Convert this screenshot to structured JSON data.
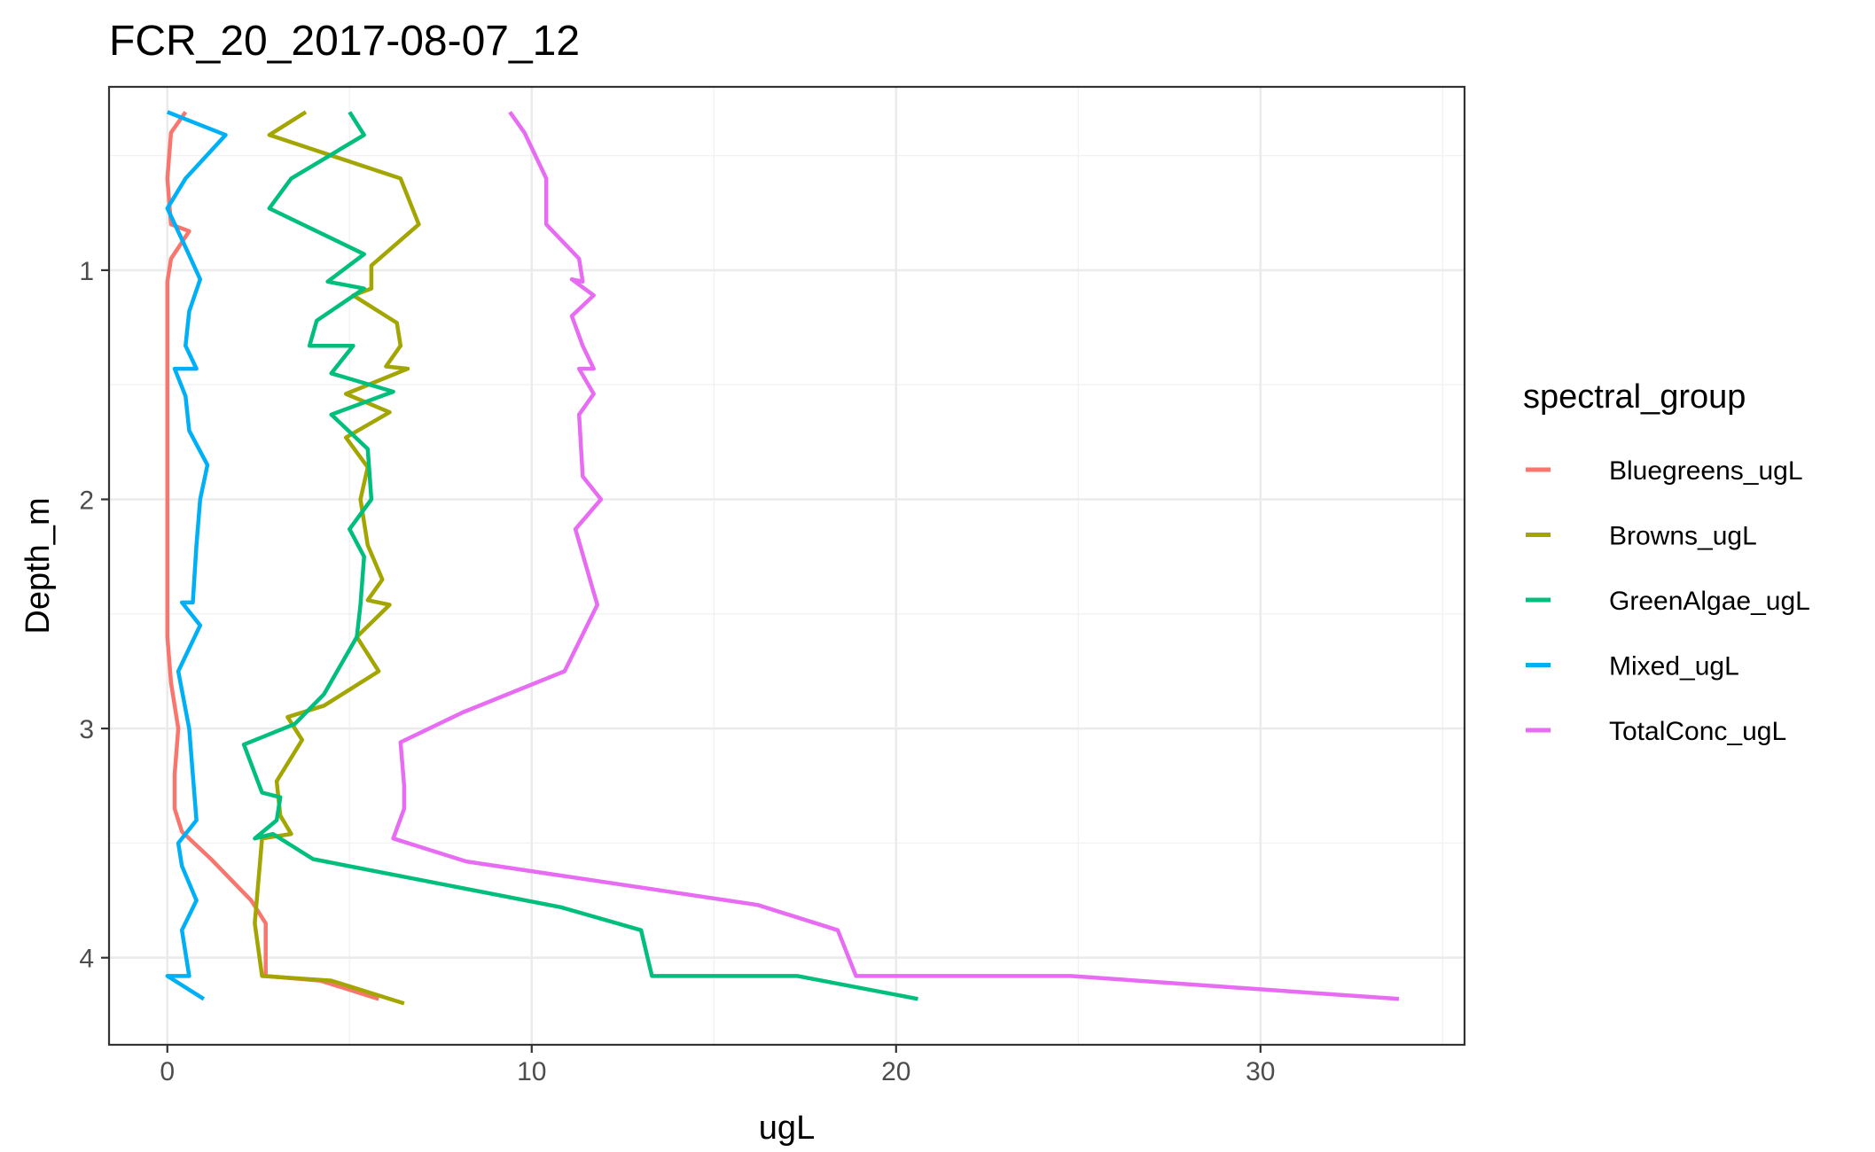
{
  "chart_data": {
    "type": "line",
    "title": "FCR_20_2017-08-07_12",
    "xlabel": "ugL",
    "ylabel": "Depth_m",
    "xlim": [
      -1.6,
      35.6
    ],
    "ylim": [
      4.38,
      0.2
    ],
    "y_reversed": true,
    "x_ticks": [
      0,
      10,
      20,
      30
    ],
    "y_ticks": [
      1,
      2,
      3,
      4
    ],
    "grid": true,
    "legend": {
      "title": "spectral_group",
      "position": "right"
    },
    "series": [
      {
        "name": "Bluegreens_ugL",
        "color": "#F8766D",
        "points": [
          [
            0.5,
            0.31
          ],
          [
            0.1,
            0.4
          ],
          [
            0.0,
            0.6
          ],
          [
            0.1,
            0.8
          ],
          [
            0.6,
            0.83
          ],
          [
            0.1,
            0.95
          ],
          [
            0.0,
            1.05
          ],
          [
            0.0,
            1.2
          ],
          [
            0.0,
            1.4
          ],
          [
            0.0,
            1.6
          ],
          [
            0.0,
            1.8
          ],
          [
            0.0,
            2.0
          ],
          [
            0.0,
            2.2
          ],
          [
            0.0,
            2.4
          ],
          [
            0.0,
            2.6
          ],
          [
            0.1,
            2.8
          ],
          [
            0.3,
            3.0
          ],
          [
            0.2,
            3.2
          ],
          [
            0.2,
            3.35
          ],
          [
            0.4,
            3.45
          ],
          [
            1.2,
            3.57
          ],
          [
            2.3,
            3.75
          ],
          [
            2.7,
            3.85
          ],
          [
            2.7,
            4.08
          ],
          [
            4.2,
            4.1
          ],
          [
            5.8,
            4.18
          ]
        ]
      },
      {
        "name": "Browns_ugL",
        "color": "#A3A500",
        "points": [
          [
            3.8,
            0.31
          ],
          [
            2.8,
            0.41
          ],
          [
            6.4,
            0.6
          ],
          [
            6.9,
            0.8
          ],
          [
            5.6,
            0.98
          ],
          [
            5.6,
            1.08
          ],
          [
            5.1,
            1.11
          ],
          [
            6.3,
            1.23
          ],
          [
            6.4,
            1.33
          ],
          [
            6.0,
            1.42
          ],
          [
            6.6,
            1.43
          ],
          [
            4.9,
            1.54
          ],
          [
            6.1,
            1.62
          ],
          [
            4.9,
            1.73
          ],
          [
            5.5,
            1.86
          ],
          [
            5.3,
            2.0
          ],
          [
            5.5,
            2.2
          ],
          [
            5.9,
            2.35
          ],
          [
            5.5,
            2.44
          ],
          [
            6.1,
            2.46
          ],
          [
            5.2,
            2.6
          ],
          [
            5.8,
            2.75
          ],
          [
            4.3,
            2.9
          ],
          [
            3.3,
            2.95
          ],
          [
            3.7,
            3.05
          ],
          [
            3.0,
            3.23
          ],
          [
            3.1,
            3.38
          ],
          [
            3.4,
            3.46
          ],
          [
            2.6,
            3.48
          ],
          [
            2.4,
            3.85
          ],
          [
            2.6,
            4.08
          ],
          [
            4.5,
            4.1
          ],
          [
            6.5,
            4.2
          ]
        ]
      },
      {
        "name": "GreenAlgae_ugL",
        "color": "#00BF7D",
        "points": [
          [
            5.0,
            0.31
          ],
          [
            5.4,
            0.41
          ],
          [
            3.4,
            0.6
          ],
          [
            2.8,
            0.73
          ],
          [
            5.4,
            0.93
          ],
          [
            4.4,
            1.05
          ],
          [
            5.4,
            1.08
          ],
          [
            4.1,
            1.22
          ],
          [
            3.9,
            1.33
          ],
          [
            5.1,
            1.33
          ],
          [
            4.5,
            1.45
          ],
          [
            6.2,
            1.53
          ],
          [
            4.5,
            1.63
          ],
          [
            5.5,
            1.78
          ],
          [
            5.6,
            2.0
          ],
          [
            5.0,
            2.13
          ],
          [
            5.4,
            2.25
          ],
          [
            5.3,
            2.46
          ],
          [
            5.2,
            2.6
          ],
          [
            4.3,
            2.85
          ],
          [
            3.5,
            2.98
          ],
          [
            2.1,
            3.07
          ],
          [
            2.6,
            3.28
          ],
          [
            3.1,
            3.3
          ],
          [
            3.0,
            3.4
          ],
          [
            2.4,
            3.48
          ],
          [
            2.9,
            3.46
          ],
          [
            4.0,
            3.57
          ],
          [
            10.8,
            3.78
          ],
          [
            13.0,
            3.88
          ],
          [
            13.3,
            4.08
          ],
          [
            17.3,
            4.08
          ],
          [
            20.6,
            4.18
          ]
        ]
      },
      {
        "name": "Mixed_ugL",
        "color": "#00B0F6",
        "points": [
          [
            0.0,
            0.31
          ],
          [
            1.6,
            0.41
          ],
          [
            0.5,
            0.6
          ],
          [
            0.0,
            0.73
          ],
          [
            0.5,
            0.9
          ],
          [
            0.9,
            1.04
          ],
          [
            0.6,
            1.18
          ],
          [
            0.5,
            1.33
          ],
          [
            0.8,
            1.43
          ],
          [
            0.2,
            1.43
          ],
          [
            0.5,
            1.55
          ],
          [
            0.6,
            1.7
          ],
          [
            1.1,
            1.85
          ],
          [
            0.9,
            2.0
          ],
          [
            0.8,
            2.2
          ],
          [
            0.7,
            2.45
          ],
          [
            0.4,
            2.45
          ],
          [
            0.9,
            2.55
          ],
          [
            0.3,
            2.75
          ],
          [
            0.6,
            3.0
          ],
          [
            0.7,
            3.2
          ],
          [
            0.8,
            3.4
          ],
          [
            0.3,
            3.5
          ],
          [
            0.4,
            3.6
          ],
          [
            0.8,
            3.75
          ],
          [
            0.4,
            3.88
          ],
          [
            0.6,
            4.08
          ],
          [
            0.0,
            4.08
          ],
          [
            1.0,
            4.18
          ]
        ]
      },
      {
        "name": "TotalConc_ugL",
        "color": "#E76BF3",
        "points": [
          [
            9.4,
            0.31
          ],
          [
            9.8,
            0.4
          ],
          [
            10.4,
            0.6
          ],
          [
            10.4,
            0.8
          ],
          [
            11.3,
            0.95
          ],
          [
            11.4,
            1.05
          ],
          [
            11.1,
            1.04
          ],
          [
            11.7,
            1.11
          ],
          [
            11.1,
            1.2
          ],
          [
            11.4,
            1.33
          ],
          [
            11.7,
            1.43
          ],
          [
            11.3,
            1.43
          ],
          [
            11.7,
            1.54
          ],
          [
            11.3,
            1.63
          ],
          [
            11.4,
            1.9
          ],
          [
            11.9,
            2.0
          ],
          [
            11.2,
            2.13
          ],
          [
            11.6,
            2.35
          ],
          [
            11.8,
            2.46
          ],
          [
            10.9,
            2.75
          ],
          [
            8.1,
            2.93
          ],
          [
            6.4,
            3.06
          ],
          [
            6.5,
            3.25
          ],
          [
            6.5,
            3.35
          ],
          [
            6.2,
            3.48
          ],
          [
            8.2,
            3.58
          ],
          [
            16.2,
            3.77
          ],
          [
            18.4,
            3.88
          ],
          [
            18.9,
            4.08
          ],
          [
            24.8,
            4.08
          ],
          [
            33.8,
            4.18
          ]
        ]
      }
    ]
  }
}
